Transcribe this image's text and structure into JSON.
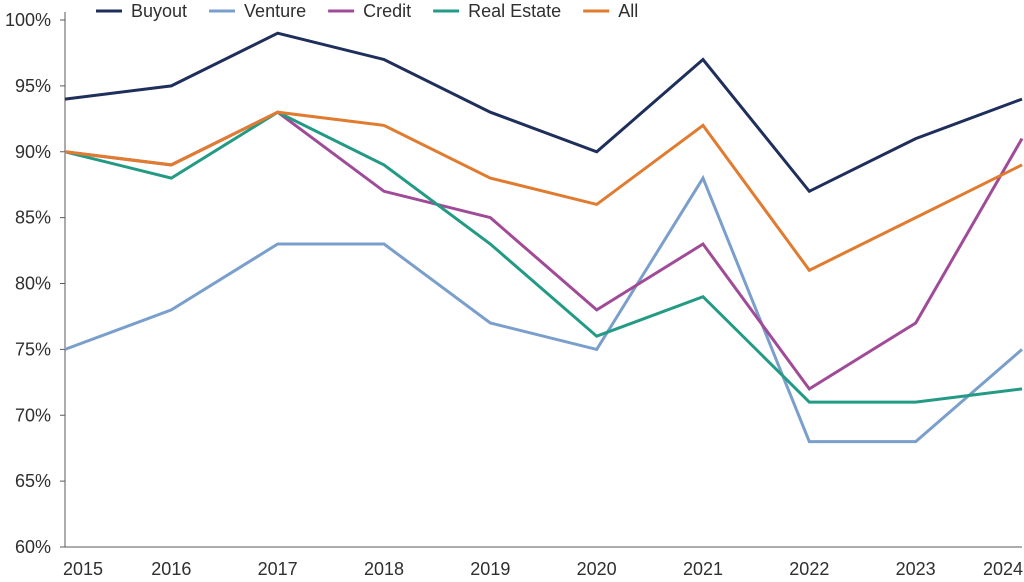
{
  "chart_data": {
    "type": "line",
    "title": "",
    "xlabel": "",
    "ylabel": "",
    "x": [
      "2015",
      "2016",
      "2017",
      "2018",
      "2019",
      "2020",
      "2021",
      "2022",
      "2023",
      "2024"
    ],
    "ylim": [
      60,
      100
    ],
    "yticks": [
      "60%",
      "65%",
      "70%",
      "75%",
      "80%",
      "85%",
      "90%",
      "95%",
      "100%"
    ],
    "ytick_values": [
      60,
      65,
      70,
      75,
      80,
      85,
      90,
      95,
      100
    ],
    "grid": false,
    "legend_position": "top",
    "series": [
      {
        "name": "Buyout",
        "color": "#1f2f5c",
        "values": [
          94,
          95,
          99,
          97,
          93,
          90,
          97,
          87,
          91,
          94
        ]
      },
      {
        "name": "Venture",
        "color": "#7b9fcc",
        "values": [
          75,
          78,
          83,
          83,
          77,
          75,
          88,
          68,
          68,
          75
        ]
      },
      {
        "name": "Credit",
        "color": "#a04b98",
        "values": [
          90,
          89,
          93,
          87,
          85,
          78,
          83,
          72,
          77,
          91
        ]
      },
      {
        "name": "Real Estate",
        "color": "#239a84",
        "values": [
          90,
          88,
          93,
          89,
          83,
          76,
          79,
          71,
          71,
          72
        ]
      },
      {
        "name": "All",
        "color": "#e07b2f",
        "values": [
          90,
          89,
          93,
          92,
          88,
          86,
          92,
          81,
          85,
          89
        ]
      }
    ]
  }
}
